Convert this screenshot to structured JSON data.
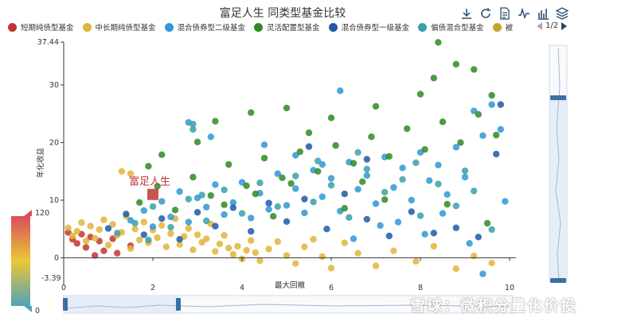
{
  "title": "富足人生 同类型基金比较",
  "toolbox": [
    "download-icon",
    "refresh-icon",
    "data-view-icon",
    "line-chart-icon",
    "bar-chart-icon",
    "stack-icon"
  ],
  "legend": {
    "items": [
      {
        "name": "短期纯债型基金",
        "color": "#c23531"
      },
      {
        "name": "中长期纯债型基金",
        "color": "#e2b43a"
      },
      {
        "name": "混合债券型二级基金",
        "color": "#2f97d4"
      },
      {
        "name": "灵活配置型基金",
        "color": "#2e8b21"
      },
      {
        "name": "混合债券型一级基金",
        "color": "#1f5aa6"
      },
      {
        "name": "偏债混合型基金",
        "color": "#3aa0a8"
      },
      {
        "name": "被",
        "color": "#c9a428"
      }
    ],
    "pager": "1/2"
  },
  "visual_map": {
    "max_label": "120",
    "min_label": "-3.39",
    "bottom_label": "0"
  },
  "watermark": "雪球：微积分量化价投",
  "chart_data": {
    "type": "scatter",
    "xlabel": "最大回撤",
    "ylabel": "年化收益",
    "xlim": [
      0,
      10
    ],
    "ylim": [
      -3.39,
      37.44
    ],
    "x_ticks": [
      "0",
      "2",
      "4",
      "6",
      "8",
      "10"
    ],
    "y_ticks": [
      "0",
      "10",
      "20",
      "30",
      "37.44"
    ],
    "highlight": {
      "name": "富足人生",
      "x": 2.0,
      "y": 11.0,
      "color": "#c23531"
    },
    "series": [
      {
        "name": "短期纯债型基金",
        "color": "#c23531",
        "points": [
          [
            0.2,
            3.2
          ],
          [
            0.3,
            2.5
          ],
          [
            0.4,
            4.1
          ],
          [
            0.5,
            1.8
          ],
          [
            0.6,
            3.6
          ],
          [
            0.8,
            2.9
          ],
          [
            0.9,
            1.2
          ],
          [
            1.1,
            3.3
          ],
          [
            1.2,
            0.8
          ],
          [
            1.5,
            2.1
          ],
          [
            0.1,
            4.4
          ],
          [
            0.7,
            0.4
          ]
        ]
      },
      {
        "name": "中长期纯债型基金",
        "color": "#e2b43a",
        "points": [
          [
            0.1,
            5.2
          ],
          [
            0.2,
            3.8
          ],
          [
            0.3,
            4.6
          ],
          [
            0.4,
            6.1
          ],
          [
            0.5,
            2.9
          ],
          [
            0.6,
            5.5
          ],
          [
            0.7,
            3.4
          ],
          [
            0.8,
            4.9
          ],
          [
            0.9,
            6.6
          ],
          [
            1.0,
            2.2
          ],
          [
            1.1,
            5.8
          ],
          [
            1.2,
            3.9
          ],
          [
            1.3,
            4.4
          ],
          [
            1.4,
            7.2
          ],
          [
            1.5,
            1.6
          ],
          [
            1.6,
            5.0
          ],
          [
            1.7,
            3.1
          ],
          [
            1.8,
            6.2
          ],
          [
            1.9,
            2.6
          ],
          [
            2.0,
            4.8
          ],
          [
            2.1,
            3.5
          ],
          [
            2.2,
            5.6
          ],
          [
            2.3,
            1.9
          ],
          [
            2.4,
            4.2
          ],
          [
            2.5,
            6.8
          ],
          [
            2.6,
            2.3
          ],
          [
            2.7,
            3.7
          ],
          [
            2.8,
            5.1
          ],
          [
            2.9,
            1.4
          ],
          [
            3.0,
            4.0
          ],
          [
            3.1,
            2.7
          ],
          [
            3.2,
            3.3
          ],
          [
            3.3,
            5.9
          ],
          [
            3.4,
            1.1
          ],
          [
            3.5,
            2.4
          ],
          [
            3.6,
            3.9
          ],
          [
            3.7,
            1.7
          ],
          [
            3.8,
            0.6
          ],
          [
            3.9,
            2.0
          ],
          [
            4.0,
            -0.2
          ],
          [
            4.1,
            1.3
          ],
          [
            4.2,
            3.0
          ],
          [
            4.3,
            0.9
          ],
          [
            4.4,
            -0.5
          ],
          [
            4.6,
            1.5
          ],
          [
            4.8,
            2.8
          ],
          [
            5.0,
            0.4
          ],
          [
            5.2,
            -1.0
          ],
          [
            5.4,
            1.9
          ],
          [
            5.6,
            3.2
          ],
          [
            5.8,
            0.2
          ],
          [
            6.0,
            -1.8
          ],
          [
            6.3,
            2.6
          ],
          [
            6.6,
            0.8
          ],
          [
            7.0,
            -1.4
          ],
          [
            7.4,
            1.2
          ],
          [
            7.9,
            -0.6
          ],
          [
            8.3,
            2.0
          ],
          [
            8.8,
            -1.9
          ],
          [
            9.2,
            0.3
          ],
          [
            9.6,
            -0.9
          ],
          [
            1.3,
            15.0
          ],
          [
            1.5,
            14.6
          ]
        ]
      },
      {
        "name": "混合债券型二级基金",
        "color": "#2f97d4",
        "points": [
          [
            1.5,
            6.5
          ],
          [
            1.8,
            8.2
          ],
          [
            2.0,
            5.4
          ],
          [
            2.2,
            9.8
          ],
          [
            2.4,
            7.1
          ],
          [
            2.6,
            11.5
          ],
          [
            2.8,
            6.2
          ],
          [
            3.0,
            10.4
          ],
          [
            3.2,
            8.8
          ],
          [
            3.4,
            12.7
          ],
          [
            3.6,
            7.5
          ],
          [
            3.8,
            9.6
          ],
          [
            4.0,
            13.1
          ],
          [
            4.2,
            6.9
          ],
          [
            4.4,
            11.2
          ],
          [
            4.6,
            8.4
          ],
          [
            4.8,
            14.6
          ],
          [
            5.0,
            9.1
          ],
          [
            5.2,
            12.0
          ],
          [
            5.4,
            7.8
          ],
          [
            5.6,
            15.2
          ],
          [
            5.8,
            10.6
          ],
          [
            6.0,
            13.8
          ],
          [
            6.2,
            8.1
          ],
          [
            6.4,
            16.6
          ],
          [
            6.6,
            11.9
          ],
          [
            6.8,
            14.3
          ],
          [
            7.0,
            9.4
          ],
          [
            7.2,
            17.5
          ],
          [
            7.4,
            12.2
          ],
          [
            7.6,
            15.6
          ],
          [
            7.8,
            10.0
          ],
          [
            8.0,
            18.3
          ],
          [
            8.2,
            13.4
          ],
          [
            8.4,
            16.1
          ],
          [
            8.6,
            11.0
          ],
          [
            8.8,
            19.2
          ],
          [
            9.0,
            14.0
          ],
          [
            9.2,
            25.5
          ],
          [
            9.4,
            21.2
          ],
          [
            9.6,
            26.6
          ],
          [
            9.8,
            22.3
          ],
          [
            3.3,
            21.0
          ],
          [
            2.8,
            23.5
          ],
          [
            6.2,
            29.0
          ],
          [
            5.8,
            16.2
          ],
          [
            7.5,
            6.2
          ],
          [
            8.1,
            4.1
          ],
          [
            9.1,
            2.5
          ],
          [
            9.4,
            -2.8
          ],
          [
            6.5,
            3.3
          ],
          [
            7.1,
            5.6
          ],
          [
            8.5,
            7.7
          ],
          [
            9.9,
            9.8
          ],
          [
            4.5,
            19.6
          ],
          [
            5.2,
            17.8
          ]
        ]
      },
      {
        "name": "灵活配置型基金",
        "color": "#2e8b21",
        "points": [
          [
            1.7,
            9.6
          ],
          [
            2.1,
            12.4
          ],
          [
            2.5,
            8.3
          ],
          [
            2.9,
            14.0
          ],
          [
            3.3,
            10.8
          ],
          [
            3.7,
            16.2
          ],
          [
            4.1,
            12.5
          ],
          [
            4.5,
            17.3
          ],
          [
            4.9,
            13.9
          ],
          [
            5.3,
            18.4
          ],
          [
            5.7,
            15.0
          ],
          [
            6.1,
            19.5
          ],
          [
            6.5,
            16.4
          ],
          [
            6.9,
            21.0
          ],
          [
            7.3,
            17.6
          ],
          [
            7.7,
            22.4
          ],
          [
            8.1,
            18.8
          ],
          [
            8.5,
            23.6
          ],
          [
            8.9,
            20.0
          ],
          [
            9.3,
            24.9
          ],
          [
            9.7,
            21.3
          ],
          [
            3.0,
            20.1
          ],
          [
            3.4,
            23.7
          ],
          [
            4.2,
            25.2
          ],
          [
            5.0,
            26.0
          ],
          [
            6.0,
            24.3
          ],
          [
            7.0,
            26.3
          ],
          [
            8.0,
            28.4
          ],
          [
            8.3,
            31.2
          ],
          [
            8.4,
            37.4
          ],
          [
            8.8,
            33.6
          ],
          [
            9.2,
            32.7
          ],
          [
            9.6,
            28.2
          ],
          [
            3.6,
            9.2
          ],
          [
            4.3,
            11.1
          ],
          [
            5.1,
            12.9
          ],
          [
            6.3,
            8.6
          ],
          [
            7.2,
            10.1
          ],
          [
            8.6,
            9.3
          ],
          [
            9.5,
            6.0
          ],
          [
            2.2,
            17.9
          ],
          [
            1.9,
            15.9
          ],
          [
            4.7,
            7.2
          ],
          [
            5.5,
            21.7
          ],
          [
            6.7,
            13.2
          ]
        ]
      },
      {
        "name": "混合债券型一级基金",
        "color": "#1f5aa6",
        "points": [
          [
            1.0,
            5.1
          ],
          [
            1.4,
            7.6
          ],
          [
            1.8,
            4.0
          ],
          [
            2.2,
            6.8
          ],
          [
            2.6,
            3.2
          ],
          [
            3.0,
            7.9
          ],
          [
            3.4,
            5.5
          ],
          [
            3.8,
            8.7
          ],
          [
            4.2,
            4.6
          ],
          [
            4.6,
            9.5
          ],
          [
            5.0,
            6.3
          ],
          [
            5.4,
            10.2
          ],
          [
            5.9,
            5.0
          ],
          [
            6.3,
            11.1
          ],
          [
            6.8,
            6.7
          ],
          [
            7.3,
            3.8
          ],
          [
            7.8,
            8.0
          ],
          [
            8.3,
            4.3
          ],
          [
            8.8,
            5.2
          ],
          [
            9.3,
            3.6
          ],
          [
            9.8,
            26.6
          ],
          [
            9.7,
            18.0
          ],
          [
            5.5,
            19.3
          ],
          [
            6.8,
            17.1
          ]
        ]
      },
      {
        "name": "偏债混合型基金",
        "color": "#3aa0a8",
        "points": [
          [
            1.2,
            4.3
          ],
          [
            1.6,
            6.0
          ],
          [
            2.0,
            8.9
          ],
          [
            2.4,
            5.3
          ],
          [
            2.8,
            10.2
          ],
          [
            3.2,
            6.4
          ],
          [
            3.6,
            11.8
          ],
          [
            4.0,
            7.7
          ],
          [
            4.4,
            13.0
          ],
          [
            4.8,
            8.9
          ],
          [
            5.2,
            14.2
          ],
          [
            5.6,
            9.7
          ],
          [
            6.0,
            12.6
          ],
          [
            6.4,
            7.0
          ],
          [
            6.8,
            15.4
          ],
          [
            7.2,
            11.4
          ],
          [
            7.6,
            13.6
          ],
          [
            8.0,
            7.3
          ],
          [
            8.4,
            12.8
          ],
          [
            8.8,
            9.0
          ],
          [
            9.2,
            11.6
          ],
          [
            9.6,
            4.9
          ],
          [
            2.9,
            22.3
          ],
          [
            2.9,
            23.2
          ],
          [
            3.1,
            10.9
          ],
          [
            5.7,
            16.8
          ],
          [
            6.6,
            18.3
          ],
          [
            7.9,
            16.5
          ],
          [
            9.0,
            15.1
          ],
          [
            1.9,
            3.1
          ]
        ]
      }
    ]
  }
}
